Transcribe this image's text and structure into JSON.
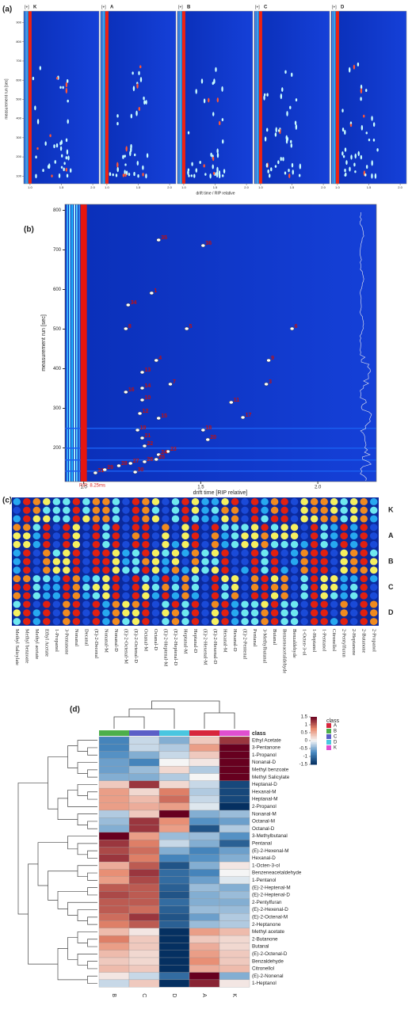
{
  "panel_a": {
    "label": "(a)",
    "marker": "[+]",
    "samples": [
      "K",
      "A",
      "B",
      "C",
      "D"
    ],
    "x_label": "drift time / RIP relative",
    "y_label": "measurement run [sec]",
    "xlim": [
      0.9,
      2.1
    ],
    "xticks": [
      {
        "value": 1,
        "label": "1.0"
      },
      1.5,
      {
        "value": 2,
        "label": "2.0"
      }
    ],
    "ylim": [
      60,
      960
    ],
    "yticks": [
      100,
      200,
      300,
      400,
      500,
      600,
      700,
      800,
      900
    ]
  },
  "panel_b": {
    "label": "(b)",
    "x_label": "drift time [RIP relative]",
    "y_label": "measurement run [sec]",
    "rip_note": "RIP: 8.25ms",
    "xlim": [
      0.92,
      2.25
    ],
    "xticks": [
      {
        "value": 1,
        "label": "1.0"
      },
      1.5,
      {
        "value": 2,
        "label": "2.0"
      }
    ],
    "ylim": [
      115,
      815
    ],
    "yticks": [
      200,
      300,
      400,
      500,
      600,
      700,
      800
    ],
    "peaks": [
      {
        "label": "35",
        "x": 1.32,
        "y": 725
      },
      {
        "label": "36",
        "x": 1.51,
        "y": 711
      },
      {
        "label": "1",
        "x": 1.29,
        "y": 591
      },
      {
        "label": "34",
        "x": 1.19,
        "y": 561
      },
      {
        "label": "8",
        "x": 1.18,
        "y": 501
      },
      {
        "label": "5",
        "x": 1.44,
        "y": 501
      },
      {
        "label": "6",
        "x": 1.89,
        "y": 501
      },
      {
        "label": "9",
        "x": 1.79,
        "y": 421
      },
      {
        "label": "3",
        "x": 1.78,
        "y": 361
      },
      {
        "label": "4",
        "x": 1.31,
        "y": 421
      },
      {
        "label": "13",
        "x": 1.25,
        "y": 391
      },
      {
        "label": "7",
        "x": 1.37,
        "y": 361
      },
      {
        "label": "14",
        "x": 1.25,
        "y": 351
      },
      {
        "label": "16",
        "x": 1.18,
        "y": 341
      },
      {
        "label": "10",
        "x": 1.25,
        "y": 321
      },
      {
        "label": "11",
        "x": 1.63,
        "y": 315
      },
      {
        "label": "12",
        "x": 1.24,
        "y": 287
      },
      {
        "label": "17",
        "x": 1.68,
        "y": 277
      },
      {
        "label": "15",
        "x": 1.32,
        "y": 275
      },
      {
        "label": "19",
        "x": 1.23,
        "y": 245
      },
      {
        "label": "18",
        "x": 1.51,
        "y": 245
      },
      {
        "label": "21",
        "x": 1.25,
        "y": 225
      },
      {
        "label": "20",
        "x": 1.53,
        "y": 221
      },
      {
        "label": "22",
        "x": 1.26,
        "y": 205
      },
      {
        "label": "23",
        "x": 1.36,
        "y": 191
      },
      {
        "label": "24",
        "x": 1.32,
        "y": 183
      },
      {
        "label": "25",
        "x": 1.31,
        "y": 171
      },
      {
        "label": "26",
        "x": 1.26,
        "y": 165
      },
      {
        "label": "27",
        "x": 1.2,
        "y": 161
      },
      {
        "label": "28",
        "x": 1.15,
        "y": 155
      },
      {
        "label": "29",
        "x": 1.09,
        "y": 145
      },
      {
        "label": "30",
        "x": 1.22,
        "y": 139
      },
      {
        "label": "31",
        "x": 1.05,
        "y": 137
      }
    ]
  },
  "panel_c": {
    "label": "(c)",
    "samples": [
      "K",
      "A",
      "B",
      "C",
      "D"
    ],
    "compounds": [
      "Methyl Salicylate",
      "Methyl benzoate",
      "Methyl acetate",
      "Ethyl Acetate",
      "1-Propanol",
      "3-Pentanone",
      "Nonanal",
      "Decanal",
      "(E)-2-Decenal",
      "Nonanal-M",
      "Nonanal-D",
      "(E)-2-Octenal-M",
      "(E)-2-Octenal-D",
      "Octanal-M",
      "Octanal-D",
      "(E)-2-Heptenal-M",
      "(E)-2-Heptenal-D",
      "Heptanal-M",
      "Heptanal-D",
      "(E)-2-Hexenal-M",
      "(E)-2-Hexenal-D",
      "Hexanal-M",
      "Hexanal-D",
      "(E)-2-Pentenal",
      "Pentanal",
      "3-Methylbutanal",
      "Butanal",
      "Benzeneacetaldehyde",
      "Benzaldehyde",
      "1-Octen-3-ol",
      "1-Heptanol",
      "1-Pentanol",
      "Citronellol",
      "2-Pentylfuran",
      "2-Heptanone",
      "2-Butanone",
      "2-Propanol"
    ]
  },
  "panel_d": {
    "label": "(d)",
    "class_label": "class",
    "columns": [
      "B",
      "C",
      "D",
      "A",
      "K"
    ],
    "column_colors": [
      "#4daf4a",
      "#5b5fc7",
      "#49c6e0",
      "#d7263d",
      "#e04fd0"
    ],
    "legend": {
      "title": "class",
      "classes": [
        "A",
        "B",
        "C",
        "D",
        "K"
      ],
      "colors": [
        "#d7263d",
        "#4daf4a",
        "#5b5fc7",
        "#49c6e0",
        "#e04fd0"
      ]
    },
    "scale_ticks": [
      1.5,
      1,
      0.5,
      0,
      -0.5,
      -1,
      -1.5
    ],
    "scale_colors": [
      "#053061",
      "#4a8ac1",
      "#f5f5f5",
      "#e7886c",
      "#67001f"
    ],
    "rows": [
      "Ethyl Acetate",
      "3-Pentanone",
      "1-Propanol",
      "Nonanal-D",
      "Methyl benzoate",
      "Methyl Salicylate",
      "Heptanal-D",
      "Hexanal-M",
      "Heptanal-M",
      "2-Propanol",
      "Nonanal-M",
      "Octanal-M",
      "Octanal-D",
      "3-Methylbutanal",
      "Pentanal",
      "(E)-2-Hexenal-M",
      "Hexanal-D",
      "1-Octen-3-ol",
      "Benzeneacetaldehyde",
      "1-Pentanol",
      "(E)-2-Heptenal-M",
      "(E)-2-Heptenal-D",
      "2-Pentylfuran",
      "(E)-2-Hexenal-D",
      "(E)-2-Octenal-M",
      "2-Heptanone",
      "Methyl acetate",
      "2-Butanone",
      "Butanal",
      "(E)-2-Octenal-D",
      "Benzaldehyde",
      "Citronellol",
      "(E)-2-Nonenal",
      "1-Heptanol"
    ],
    "values": [
      [
        -0.8,
        -0.2,
        -0.5,
        0.3,
        1.2
      ],
      [
        -0.8,
        -0.2,
        -0.3,
        0.6,
        1.5
      ],
      [
        -0.7,
        -0.5,
        -0.2,
        0.3,
        1.6
      ],
      [
        -0.6,
        -0.8,
        0,
        0.1,
        1.6
      ],
      [
        -0.6,
        -0.4,
        0.2,
        -0.3,
        1.6
      ],
      [
        -0.5,
        -0.5,
        -0.3,
        0,
        1.6
      ],
      [
        0.3,
        1.2,
        0.2,
        -0.2,
        -1.3
      ],
      [
        0.6,
        0.2,
        0.8,
        -0.3,
        -1.3
      ],
      [
        0.6,
        0.4,
        0.9,
        -0.2,
        -1.3
      ],
      [
        0.6,
        0.5,
        0.6,
        -0.1,
        -1.6
      ],
      [
        -0.3,
        0.3,
        1.6,
        -0.5,
        -0.4
      ],
      [
        -0.4,
        1.2,
        0.7,
        -0.7,
        -0.6
      ],
      [
        -0.5,
        1.2,
        0.6,
        -1.2,
        -0.3
      ],
      [
        1.6,
        0.6,
        -0.4,
        -0.4,
        -0.7
      ],
      [
        1.2,
        0.8,
        -0.2,
        -0.5,
        -1.1
      ],
      [
        1.1,
        0.9,
        -0.5,
        -0.8,
        -0.6
      ],
      [
        1.2,
        0.8,
        -0.8,
        -0.7,
        -0.5
      ],
      [
        0.5,
        1,
        -1.2,
        -0.5,
        0.1
      ],
      [
        0.7,
        1.2,
        -1,
        -0.8,
        0
      ],
      [
        0.6,
        1.1,
        -1,
        -0.6,
        -0.1
      ],
      [
        1,
        1,
        -1.1,
        -0.4,
        -0.5
      ],
      [
        1.1,
        1,
        -1.2,
        -0.5,
        -0.4
      ],
      [
        1,
        1,
        -1,
        -0.5,
        -0.5
      ],
      [
        1,
        0.9,
        -1.1,
        -0.4,
        -0.4
      ],
      [
        0.9,
        1.2,
        -1.2,
        -0.6,
        -0.3
      ],
      [
        0.8,
        1,
        -1.1,
        -0.4,
        -0.3
      ],
      [
        0.4,
        0.1,
        -1.5,
        0.6,
        0.4
      ],
      [
        0.8,
        0.3,
        -1.6,
        0.3,
        0.2
      ],
      [
        0.6,
        0.3,
        -1.6,
        0.5,
        0.2
      ],
      [
        0.4,
        0.2,
        -1.6,
        0.6,
        0.3
      ],
      [
        0.3,
        0.2,
        -1.6,
        0.7,
        0.3
      ],
      [
        0.4,
        0.3,
        -1.6,
        0.5,
        0.4
      ],
      [
        0.1,
        -0.2,
        -1,
        1.6,
        -0.5
      ],
      [
        -0.2,
        0.3,
        -1.5,
        1.3,
        0.1
      ]
    ]
  }
}
